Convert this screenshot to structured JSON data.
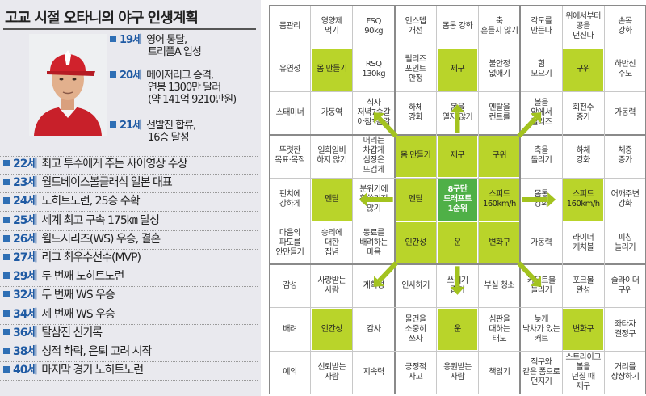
{
  "title": "고교 시절 오타니의 야구 인생계획",
  "timeline": [
    {
      "age": "19세",
      "lines": [
        "영어 통달,",
        "트리플A 입성"
      ]
    },
    {
      "age": "20세",
      "lines": [
        "메이저리그 승격,",
        "연봉 1300만 달러",
        "(약 141억 9210만원)"
      ]
    },
    {
      "age": "21세",
      "lines": [
        "선발진 합류,",
        "16승 달성"
      ]
    },
    {
      "age": "22세",
      "lines": [
        "최고 투수에게 주는 사이영상 수상"
      ]
    },
    {
      "age": "23세",
      "lines": [
        "월드베이스볼클래식 일본 대표"
      ]
    },
    {
      "age": "24세",
      "lines": [
        "노히트노런, 25승 수확"
      ]
    },
    {
      "age": "25세",
      "lines": [
        "세계 최고 구속 175㎞ 달성"
      ]
    },
    {
      "age": "26세",
      "lines": [
        "월드시리즈(WS) 우승, 결혼"
      ]
    },
    {
      "age": "27세",
      "lines": [
        "리그 최우수선수(MVP)"
      ]
    },
    {
      "age": "29세",
      "lines": [
        "두 번째 노히트노런"
      ]
    },
    {
      "age": "32세",
      "lines": [
        "두 번째 WS 우승"
      ]
    },
    {
      "age": "34세",
      "lines": [
        "세 번째 WS 우승"
      ]
    },
    {
      "age": "36세",
      "lines": [
        "탈삼진 신기록"
      ]
    },
    {
      "age": "38세",
      "lines": [
        "성적 하락, 은퇴 고려 시작"
      ]
    },
    {
      "age": "40세",
      "lines": [
        "마지막 경기 노히트노런"
      ]
    }
  ],
  "grid": [
    [
      "몸관리",
      "영양제\n먹기",
      "FSQ\n90kg",
      "인스텝\n개선",
      "몸통 강화",
      "축\n흔들지 않기",
      "각도를\n만든다",
      "위에서부터\n공을\n던진다",
      "손목\n강화"
    ],
    [
      "유연성",
      "몸 만들기",
      "RSQ\n130kg",
      "릴리즈\n포인트\n안정",
      "제구",
      "불안정\n없애기",
      "힘\n모으기",
      "구위",
      "하반신\n주도"
    ],
    [
      "스태미너",
      "가동역",
      "식사\n저녁7숟갈\n아침3숟갈",
      "하체\n강화",
      "몸을\n열지 않기",
      "멘탈을\n컨트롤",
      "볼을\n앞에서\n릴리즈",
      "회전수\n증가",
      "가동력"
    ],
    [
      "뚜렷한\n목표·목적",
      "일희일비\n하지 않기",
      "머리는\n차갑게\n심장은\n뜨겁게",
      "몸 만들기",
      "제구",
      "구위",
      "축을\n돌리기",
      "하체\n강화",
      "체중\n증가"
    ],
    [
      "핀치에\n강하게",
      "멘탈",
      "분위기에\n휩쓸리지\n않기",
      "멘탈",
      "8구단\n드래프트\n1순위",
      "스피드\n160km/h",
      "몸통\n강화",
      "스피드\n160km/h",
      "어깨주변\n강화"
    ],
    [
      "마음의\n파도를\n안만들기",
      "승리에\n대한\n집념",
      "동료를\n배려하는\n마음",
      "인간성",
      "운",
      "변화구",
      "가동력",
      "라이너\n캐치볼",
      "피칭\n늘리기"
    ],
    [
      "감성",
      "사랑받는\n사람",
      "계획성",
      "인사하기",
      "쓰레기\n줍기",
      "부실 청소",
      "카운트볼\n늘리기",
      "포크볼\n완성",
      "슬라이더\n구위"
    ],
    [
      "배려",
      "인간성",
      "감사",
      "물건을\n소중히\n쓰자",
      "운",
      "심판을\n대하는\n태도",
      "늦게\n낙차가 있는\n커브",
      "변화구",
      "좌타자\n결정구"
    ],
    [
      "예의",
      "신뢰받는\n사람",
      "지속력",
      "긍정적\n사고",
      "응원받는\n사람",
      "책읽기",
      "직구와\n같은 폼으로\n던지기",
      "스트라이크\n볼을\n던질 때\n제구",
      "거리를\n상상하기"
    ]
  ]
}
